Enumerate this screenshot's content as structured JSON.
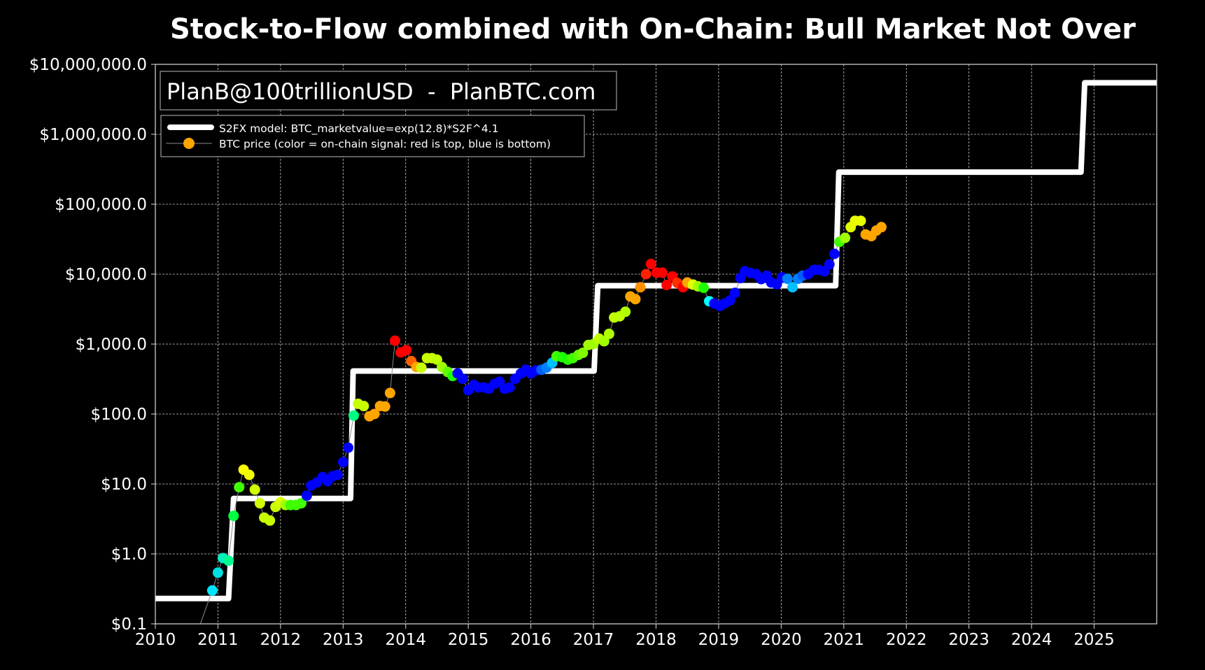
{
  "chart_data": {
    "type": "scatter",
    "title": "Stock-to-Flow combined with On-Chain: Bull Market Not Over",
    "watermark": "PlanB@100trillionUSD  -  PlanBTC.com",
    "xlabel": "",
    "ylabel": "",
    "xlim": [
      2010,
      2026
    ],
    "ylim": [
      0.1,
      10000000
    ],
    "yscale": "log",
    "grid": true,
    "legend_placement": "top-left",
    "x_ticks": [
      "2010",
      "2011",
      "2012",
      "2013",
      "2014",
      "2015",
      "2016",
      "2017",
      "2018",
      "2019",
      "2020",
      "2021",
      "2022",
      "2023",
      "2024",
      "2025"
    ],
    "y_ticks": [
      {
        "value": 0.1,
        "label": "$0.1"
      },
      {
        "value": 1,
        "label": "$1.0"
      },
      {
        "value": 10,
        "label": "$10.0"
      },
      {
        "value": 100,
        "label": "$100.0"
      },
      {
        "value": 1000,
        "label": "$1,000.0"
      },
      {
        "value": 10000,
        "label": "$10,000.0"
      },
      {
        "value": 100000,
        "label": "$100,000.0"
      },
      {
        "value": 1000000,
        "label": "$1,000,000.0"
      },
      {
        "value": 10000000,
        "label": "$10,000,000.0"
      }
    ],
    "legend": [
      {
        "name": "S2FX model: BTC_marketvalue=exp(12.8)*S2F^4.1",
        "color": "#ffffff",
        "kind": "thick-line"
      },
      {
        "name": "BTC price (color = on-chain signal: red is top, blue is bottom)",
        "color": "#ffa500",
        "kind": "line-marker"
      }
    ],
    "series": [
      {
        "name": "S2FX model",
        "color": "#ffffff",
        "points": [
          [
            2010,
            0.23
          ],
          [
            2011.17,
            0.23
          ],
          [
            2011.25,
            6.2
          ],
          [
            2013.12,
            6.2
          ],
          [
            2013.16,
            412
          ],
          [
            2017.01,
            412
          ],
          [
            2017.07,
            6840
          ],
          [
            2020.87,
            6840
          ],
          [
            2020.92,
            288000
          ],
          [
            2024.79,
            288000
          ],
          [
            2024.85,
            5450000
          ],
          [
            2026,
            5450000
          ]
        ]
      },
      {
        "name": "BTC price",
        "line_start": [
          2010.68,
          0.08
        ],
        "points": [
          [
            2010.91,
            0.3,
            "#00e5ff"
          ],
          [
            2011.0,
            0.54,
            "#00e0e0"
          ],
          [
            2011.08,
            0.87,
            "#00f0c0"
          ],
          [
            2011.17,
            0.8,
            "#00ff90"
          ],
          [
            2011.25,
            3.5,
            "#00ff40"
          ],
          [
            2011.34,
            9,
            "#40ff00"
          ],
          [
            2011.41,
            16,
            "#ffff00"
          ],
          [
            2011.5,
            13.5,
            "#f0ff00"
          ],
          [
            2011.59,
            8.3,
            "#d0ff00"
          ],
          [
            2011.67,
            5.3,
            "#d0ff00"
          ],
          [
            2011.74,
            3.3,
            "#c8ff00"
          ],
          [
            2011.83,
            3.0,
            "#c8ff00"
          ],
          [
            2011.92,
            4.7,
            "#c8ff00"
          ],
          [
            2012.0,
            5.5,
            "#d8ff00"
          ],
          [
            2012.08,
            5.0,
            "#a0ff00"
          ],
          [
            2012.16,
            5.0,
            "#40ff00"
          ],
          [
            2012.25,
            5.0,
            "#40ff00"
          ],
          [
            2012.33,
            5.3,
            "#40ff00"
          ],
          [
            2012.42,
            6.8,
            "#0000ff"
          ],
          [
            2012.49,
            9.5,
            "#0000ff"
          ],
          [
            2012.58,
            10.5,
            "#0000ff"
          ],
          [
            2012.67,
            12.5,
            "#0000ff"
          ],
          [
            2012.75,
            11,
            "#0000ff"
          ],
          [
            2012.83,
            12.9,
            "#0000ff"
          ],
          [
            2012.91,
            13.5,
            "#0000ff"
          ],
          [
            2013.0,
            20.5,
            "#0000ff"
          ],
          [
            2013.08,
            33,
            "#0000ff"
          ],
          [
            2013.17,
            95,
            "#00ff80"
          ],
          [
            2013.24,
            140,
            "#c8ff00"
          ],
          [
            2013.33,
            130,
            "#c8ff00"
          ],
          [
            2013.42,
            93,
            "#ffa500"
          ],
          [
            2013.5,
            100,
            "#ffa500"
          ],
          [
            2013.59,
            130,
            "#ffa500"
          ],
          [
            2013.67,
            128,
            "#ffa500"
          ],
          [
            2013.75,
            200,
            "#ffa500"
          ],
          [
            2013.83,
            1120,
            "#ff0000"
          ],
          [
            2013.92,
            760,
            "#ff0000"
          ],
          [
            2014.01,
            820,
            "#ff0000"
          ],
          [
            2014.09,
            570,
            "#ff6000"
          ],
          [
            2014.17,
            470,
            "#ffa500"
          ],
          [
            2014.25,
            460,
            "#c8ff00"
          ],
          [
            2014.34,
            630,
            "#c8ff00"
          ],
          [
            2014.42,
            630,
            "#c8ff00"
          ],
          [
            2014.5,
            600,
            "#c0ff00"
          ],
          [
            2014.58,
            470,
            "#a0ff00"
          ],
          [
            2014.67,
            400,
            "#60ff00"
          ],
          [
            2014.75,
            350,
            "#20ff00"
          ],
          [
            2014.83,
            380,
            "#0000ff"
          ],
          [
            2014.91,
            320,
            "#0000ff"
          ],
          [
            2015.0,
            220,
            "#0000ff"
          ],
          [
            2015.09,
            260,
            "#0000ff"
          ],
          [
            2015.16,
            240,
            "#0000ff"
          ],
          [
            2015.25,
            240,
            "#0000ff"
          ],
          [
            2015.33,
            230,
            "#0000ff"
          ],
          [
            2015.42,
            270,
            "#0000ff"
          ],
          [
            2015.5,
            290,
            "#0000ff"
          ],
          [
            2015.58,
            230,
            "#0000ff"
          ],
          [
            2015.66,
            240,
            "#0000ff"
          ],
          [
            2015.75,
            320,
            "#0000ff"
          ],
          [
            2015.84,
            380,
            "#0000ff"
          ],
          [
            2015.92,
            430,
            "#0000ff"
          ],
          [
            2016.0,
            380,
            "#0000ff"
          ],
          [
            2016.08,
            420,
            "#0000ff"
          ],
          [
            2016.17,
            430,
            "#0060ff"
          ],
          [
            2016.25,
            460,
            "#0080ff"
          ],
          [
            2016.34,
            540,
            "#00c0ff"
          ],
          [
            2016.41,
            670,
            "#40ff00"
          ],
          [
            2016.5,
            650,
            "#20ff00"
          ],
          [
            2016.59,
            600,
            "#20ff00"
          ],
          [
            2016.67,
            630,
            "#40ff00"
          ],
          [
            2016.76,
            700,
            "#60ff00"
          ],
          [
            2016.83,
            750,
            "#80ff00"
          ],
          [
            2016.92,
            970,
            "#a0ff00"
          ],
          [
            2017.0,
            1000,
            "#a0ff00"
          ],
          [
            2017.09,
            1200,
            "#c0ff00"
          ],
          [
            2017.17,
            1100,
            "#a0ff00"
          ],
          [
            2017.25,
            1400,
            "#b0ff00"
          ],
          [
            2017.33,
            2400,
            "#c0ff00"
          ],
          [
            2017.42,
            2500,
            "#c0ff00"
          ],
          [
            2017.51,
            2900,
            "#b0ff00"
          ],
          [
            2017.59,
            4800,
            "#ffa500"
          ],
          [
            2017.67,
            4400,
            "#ffa500"
          ],
          [
            2017.75,
            6500,
            "#ff9000"
          ],
          [
            2017.84,
            10000,
            "#ff2000"
          ],
          [
            2017.92,
            14000,
            "#ff0000"
          ],
          [
            2018.01,
            10500,
            "#ff0000"
          ],
          [
            2018.1,
            10500,
            "#ff0000"
          ],
          [
            2018.17,
            7000,
            "#ff0000"
          ],
          [
            2018.26,
            9300,
            "#ff0000"
          ],
          [
            2018.34,
            7500,
            "#ff3000"
          ],
          [
            2018.43,
            6500,
            "#ff0000"
          ],
          [
            2018.5,
            7600,
            "#ffa500"
          ],
          [
            2018.59,
            7100,
            "#e0ff00"
          ],
          [
            2018.67,
            6700,
            "#a0ff00"
          ],
          [
            2018.76,
            6400,
            "#20ff00"
          ],
          [
            2018.85,
            4100,
            "#00ffff"
          ],
          [
            2018.93,
            3800,
            "#0000ff"
          ],
          [
            2019.02,
            3500,
            "#0000ff"
          ],
          [
            2019.09,
            3800,
            "#0000ff"
          ],
          [
            2019.18,
            4200,
            "#0000ff"
          ],
          [
            2019.26,
            5400,
            "#0000ff"
          ],
          [
            2019.35,
            8800,
            "#0000ff"
          ],
          [
            2019.42,
            11000,
            "#0000ff"
          ],
          [
            2019.51,
            10400,
            "#0000ff"
          ],
          [
            2019.6,
            10000,
            "#0000ff"
          ],
          [
            2019.68,
            8500,
            "#0000ff"
          ],
          [
            2019.77,
            9500,
            "#0000ff"
          ],
          [
            2019.84,
            7600,
            "#0000ff"
          ],
          [
            2019.93,
            7200,
            "#0000ff"
          ],
          [
            2020.01,
            9000,
            "#0000ff"
          ],
          [
            2020.1,
            8600,
            "#0080ff"
          ],
          [
            2020.18,
            6500,
            "#00c0ff"
          ],
          [
            2020.27,
            8600,
            "#0080ff"
          ],
          [
            2020.34,
            9500,
            "#0060ff"
          ],
          [
            2020.43,
            10000,
            "#0000ff"
          ],
          [
            2020.52,
            11500,
            "#0000ff"
          ],
          [
            2020.6,
            11500,
            "#0000ff"
          ],
          [
            2020.69,
            11000,
            "#0000ff"
          ],
          [
            2020.77,
            13800,
            "#0000ff"
          ],
          [
            2020.85,
            19500,
            "#0000ff"
          ],
          [
            2020.93,
            29000,
            "#40ff00"
          ],
          [
            2021.02,
            33000,
            "#a0ff00"
          ],
          [
            2021.11,
            47000,
            "#e0ff00"
          ],
          [
            2021.18,
            58000,
            "#e8ff00"
          ],
          [
            2021.27,
            58000,
            "#e8ff00"
          ],
          [
            2021.35,
            37000,
            "#ffa500"
          ],
          [
            2021.44,
            35000,
            "#ffa500"
          ],
          [
            2021.52,
            42000,
            "#ffa500"
          ],
          [
            2021.6,
            47000,
            "#ffa500"
          ]
        ]
      }
    ]
  }
}
